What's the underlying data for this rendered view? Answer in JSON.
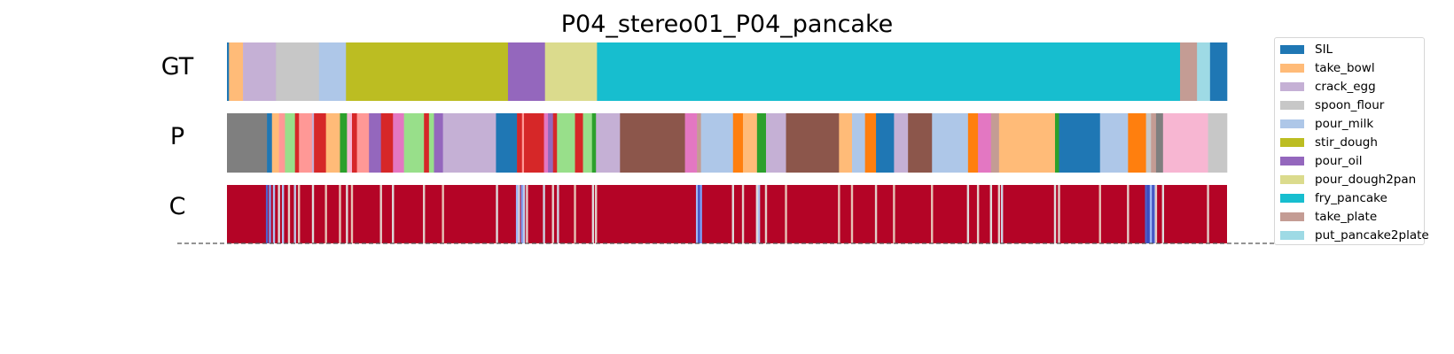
{
  "chart_data": {
    "type": "segmentation",
    "title": "P04_stereo01_P04_pancake",
    "rows": [
      {
        "label": "GT",
        "kind": "labels",
        "segments": [
          [
            "SIL",
            0.0,
            0.002
          ],
          [
            "take_bowl",
            0.002,
            0.016
          ],
          [
            "crack_egg",
            0.016,
            0.049
          ],
          [
            "spoon_flour",
            0.049,
            0.092
          ],
          [
            "pour_milk",
            0.092,
            0.119
          ],
          [
            "stir_dough",
            0.119,
            0.281
          ],
          [
            "pour_oil",
            0.281,
            0.318
          ],
          [
            "pour_dough2pan",
            0.318,
            0.37
          ],
          [
            "fry_pancake",
            0.37,
            0.953
          ],
          [
            "take_plate",
            0.953,
            0.97
          ],
          [
            "put_pancake2plate",
            0.97,
            0.983
          ],
          [
            "SIL",
            0.983,
            1.0
          ]
        ]
      },
      {
        "label": "P",
        "kind": "labels",
        "segments": [
          [
            "gray",
            0.0,
            0.04
          ],
          [
            "SIL",
            0.04,
            0.045
          ],
          [
            "take_bowl",
            0.045,
            0.052
          ],
          [
            "salmon",
            0.052,
            0.058
          ],
          [
            "light_green",
            0.058,
            0.068
          ],
          [
            "red",
            0.068,
            0.072
          ],
          [
            "salmon",
            0.072,
            0.085
          ],
          [
            "light_purple",
            0.085,
            0.087
          ],
          [
            "red",
            0.087,
            0.099
          ],
          [
            "take_bowl",
            0.099,
            0.113
          ],
          [
            "green",
            0.113,
            0.12
          ],
          [
            "light_pink",
            0.12,
            0.125
          ],
          [
            "red",
            0.125,
            0.13
          ],
          [
            "salmon",
            0.13,
            0.142
          ],
          [
            "pour_oil",
            0.142,
            0.154
          ],
          [
            "red",
            0.154,
            0.166
          ],
          [
            "pink",
            0.166,
            0.177
          ],
          [
            "light_green",
            0.177,
            0.197
          ],
          [
            "red",
            0.197,
            0.202
          ],
          [
            "light_green",
            0.202,
            0.207
          ],
          [
            "pour_oil",
            0.207,
            0.216
          ],
          [
            "crack_egg",
            0.216,
            0.269
          ],
          [
            "SIL",
            0.269,
            0.29
          ],
          [
            "red",
            0.29,
            0.295
          ],
          [
            "salmon",
            0.295,
            0.297
          ],
          [
            "red",
            0.297,
            0.317
          ],
          [
            "pink",
            0.317,
            0.321
          ],
          [
            "pour_oil",
            0.321,
            0.326
          ],
          [
            "red",
            0.326,
            0.33
          ],
          [
            "light_green",
            0.33,
            0.348
          ],
          [
            "red",
            0.348,
            0.356
          ],
          [
            "light_green",
            0.356,
            0.365
          ],
          [
            "green",
            0.365,
            0.369
          ],
          [
            "crack_egg",
            0.369,
            0.393
          ],
          [
            "brown",
            0.393,
            0.458
          ],
          [
            "pink",
            0.458,
            0.47
          ],
          [
            "take_plate",
            0.47,
            0.474
          ],
          [
            "pour_milk",
            0.474,
            0.506
          ],
          [
            "orange",
            0.506,
            0.516
          ],
          [
            "take_bowl",
            0.516,
            0.53
          ],
          [
            "green",
            0.53,
            0.539
          ],
          [
            "crack_egg",
            0.539,
            0.559
          ],
          [
            "brown",
            0.559,
            0.612
          ],
          [
            "take_bowl",
            0.612,
            0.625
          ],
          [
            "pour_milk",
            0.625,
            0.638
          ],
          [
            "orange",
            0.638,
            0.649
          ],
          [
            "SIL",
            0.649,
            0.667
          ],
          [
            "crack_egg",
            0.667,
            0.681
          ],
          [
            "brown",
            0.681,
            0.705
          ],
          [
            "pour_milk",
            0.705,
            0.741
          ],
          [
            "orange",
            0.741,
            0.751
          ],
          [
            "pink",
            0.751,
            0.764
          ],
          [
            "take_plate",
            0.764,
            0.772
          ],
          [
            "take_bowl",
            0.772,
            0.828
          ],
          [
            "green",
            0.828,
            0.832
          ],
          [
            "SIL",
            0.832,
            0.873
          ],
          [
            "pour_milk",
            0.873,
            0.901
          ],
          [
            "orange",
            0.901,
            0.919
          ],
          [
            "spoon_flour",
            0.919,
            0.924
          ],
          [
            "take_plate",
            0.924,
            0.929
          ],
          [
            "gray",
            0.929,
            0.936
          ],
          [
            "light_pink",
            0.936,
            0.981
          ],
          [
            "spoon_flour",
            0.981,
            1.0
          ]
        ]
      },
      {
        "label": "C",
        "kind": "confidence",
        "base_color": "#b40426",
        "dips": [
          [
            0.04,
            0.055
          ],
          [
            0.043,
            0.2
          ],
          [
            0.047,
            0.35
          ],
          [
            0.052,
            0.5
          ],
          [
            0.056,
            0.35
          ],
          [
            0.062,
            0.55
          ],
          [
            0.068,
            0.4
          ],
          [
            0.072,
            0.6
          ],
          [
            0.086,
            0.5
          ],
          [
            0.099,
            0.6
          ],
          [
            0.113,
            0.6
          ],
          [
            0.12,
            0.5
          ],
          [
            0.125,
            0.6
          ],
          [
            0.154,
            0.55
          ],
          [
            0.166,
            0.5
          ],
          [
            0.197,
            0.55
          ],
          [
            0.216,
            0.6
          ],
          [
            0.27,
            0.5
          ],
          [
            0.29,
            0.3
          ],
          [
            0.292,
            0.45
          ],
          [
            0.295,
            0.2
          ],
          [
            0.297,
            0.4
          ],
          [
            0.3,
            0.55
          ],
          [
            0.317,
            0.45
          ],
          [
            0.326,
            0.55
          ],
          [
            0.331,
            0.45
          ],
          [
            0.348,
            0.6
          ],
          [
            0.366,
            0.5
          ],
          [
            0.369,
            0.55
          ],
          [
            0.47,
            0.3
          ],
          [
            0.472,
            0.02
          ],
          [
            0.474,
            0.2
          ],
          [
            0.506,
            0.5
          ],
          [
            0.516,
            0.55
          ],
          [
            0.53,
            0.5
          ],
          [
            0.532,
            0.35
          ],
          [
            0.539,
            0.55
          ],
          [
            0.559,
            0.6
          ],
          [
            0.612,
            0.6
          ],
          [
            0.625,
            0.6
          ],
          [
            0.649,
            0.55
          ],
          [
            0.667,
            0.6
          ],
          [
            0.705,
            0.6
          ],
          [
            0.741,
            0.5
          ],
          [
            0.751,
            0.55
          ],
          [
            0.764,
            0.5
          ],
          [
            0.772,
            0.55
          ],
          [
            0.775,
            0.45
          ],
          [
            0.828,
            0.5
          ],
          [
            0.832,
            0.55
          ],
          [
            0.873,
            0.6
          ],
          [
            0.901,
            0.55
          ],
          [
            0.919,
            0.05
          ],
          [
            0.921,
            0.0
          ],
          [
            0.923,
            0.05
          ],
          [
            0.924,
            0.3
          ],
          [
            0.926,
            0.0
          ],
          [
            0.928,
            0.15
          ],
          [
            0.929,
            0.55
          ],
          [
            0.936,
            0.5
          ],
          [
            0.981,
            0.55
          ]
        ]
      }
    ],
    "classes": [
      {
        "name": "SIL",
        "color": "#1f77b4",
        "in_legend": true
      },
      {
        "name": "take_bowl",
        "color": "#ffbb78",
        "in_legend": true
      },
      {
        "name": "crack_egg",
        "color": "#c5b0d5",
        "in_legend": true
      },
      {
        "name": "spoon_flour",
        "color": "#c7c7c7",
        "in_legend": true
      },
      {
        "name": "pour_milk",
        "color": "#aec7e8",
        "in_legend": true
      },
      {
        "name": "stir_dough",
        "color": "#bcbd22",
        "in_legend": true
      },
      {
        "name": "pour_oil",
        "color": "#9467bd",
        "in_legend": true
      },
      {
        "name": "pour_dough2pan",
        "color": "#dbdb8d",
        "in_legend": true
      },
      {
        "name": "fry_pancake",
        "color": "#17becf",
        "in_legend": true
      },
      {
        "name": "take_plate",
        "color": "#c49c94",
        "in_legend": true
      },
      {
        "name": "put_pancake2plate",
        "color": "#9edae5",
        "in_legend": true
      },
      {
        "name": "gray",
        "color": "#7f7f7f",
        "in_legend": false
      },
      {
        "name": "salmon",
        "color": "#ff9896",
        "in_legend": false
      },
      {
        "name": "light_green",
        "color": "#98df8a",
        "in_legend": false
      },
      {
        "name": "red",
        "color": "#d62728",
        "in_legend": false
      },
      {
        "name": "green",
        "color": "#2ca02c",
        "in_legend": false
      },
      {
        "name": "light_purple",
        "color": "#c5b0d5",
        "in_legend": false
      },
      {
        "name": "light_pink",
        "color": "#f7b6d2",
        "in_legend": false
      },
      {
        "name": "pink",
        "color": "#e377c2",
        "in_legend": false
      },
      {
        "name": "brown",
        "color": "#8c564b",
        "in_legend": false
      },
      {
        "name": "orange",
        "color": "#ff7f0e",
        "in_legend": false
      }
    ],
    "legend_position": "right",
    "baseline": "dashed"
  }
}
